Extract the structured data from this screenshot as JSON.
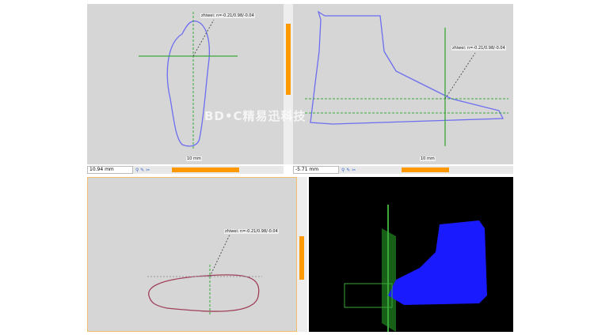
{
  "top_left": {
    "annotation": "zhiwei: n=-0.21/0.98/-0.04",
    "measure": "10.94 mm",
    "scale_label": "10 mm"
  },
  "top_right": {
    "annotation": "zhiwei: n=-0.21/0.98/-0.04",
    "measure": "-5.71 mm",
    "scale_label": "10 mm"
  },
  "bottom_left": {
    "annotation": "zhiwei: n=-0.21/0.98/-0.04"
  },
  "watermark": "BD•C精易迅科技",
  "colors": {
    "accent": "#ff9900",
    "outline": "#6d6df0",
    "model": "#1a1aff",
    "axis": "#3aa83a"
  }
}
